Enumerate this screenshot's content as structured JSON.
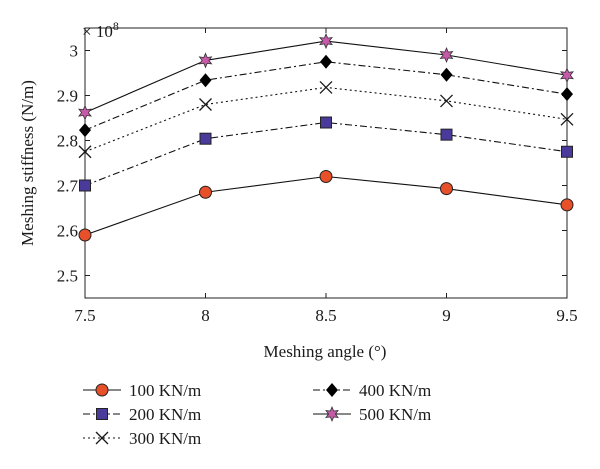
{
  "chart_data": {
    "type": "line",
    "title": "",
    "xlabel": "Meshing angle (°)",
    "ylabel": "Meshing stiffness (N/m)",
    "y_multiplier_label": "× 10",
    "y_multiplier_exponent": "8",
    "x": [
      7.5,
      8,
      8.5,
      9,
      9.5
    ],
    "x_tick_labels": [
      "7.5",
      "8",
      "8.5",
      "9",
      "9.5"
    ],
    "y_ticks": [
      2.5,
      2.6,
      2.7,
      2.8,
      2.9,
      3.0
    ],
    "y_tick_labels": [
      "2.5",
      "2.6",
      "2.7",
      "2.8",
      "2.9",
      "3"
    ],
    "xlim": [
      7.5,
      9.5
    ],
    "ylim": [
      2.45,
      3.05
    ],
    "grid": false,
    "legend_position": "bottom",
    "series": [
      {
        "name": "100 KN/m",
        "values": [
          2.59,
          2.685,
          2.72,
          2.693,
          2.657
        ],
        "marker": "circle",
        "dash": "solid",
        "color": "#e8502a"
      },
      {
        "name": "200 KN/m",
        "values": [
          2.7,
          2.804,
          2.84,
          2.813,
          2.775
        ],
        "marker": "square",
        "dash": "dashdot",
        "color": "#4a3a9c"
      },
      {
        "name": "300 KN/m",
        "values": [
          2.775,
          2.88,
          2.918,
          2.888,
          2.847
        ],
        "marker": "x",
        "dash": "dotted",
        "color": "#1a1a1a"
      },
      {
        "name": "400 KN/m",
        "values": [
          2.823,
          2.934,
          2.975,
          2.946,
          2.903
        ],
        "marker": "diamond",
        "dash": "dashdot",
        "color": "#000000"
      },
      {
        "name": "500 KN/m",
        "values": [
          2.862,
          2.978,
          3.021,
          2.99,
          2.945
        ],
        "marker": "star",
        "dash": "solid",
        "color": "#c45aa8"
      }
    ]
  }
}
